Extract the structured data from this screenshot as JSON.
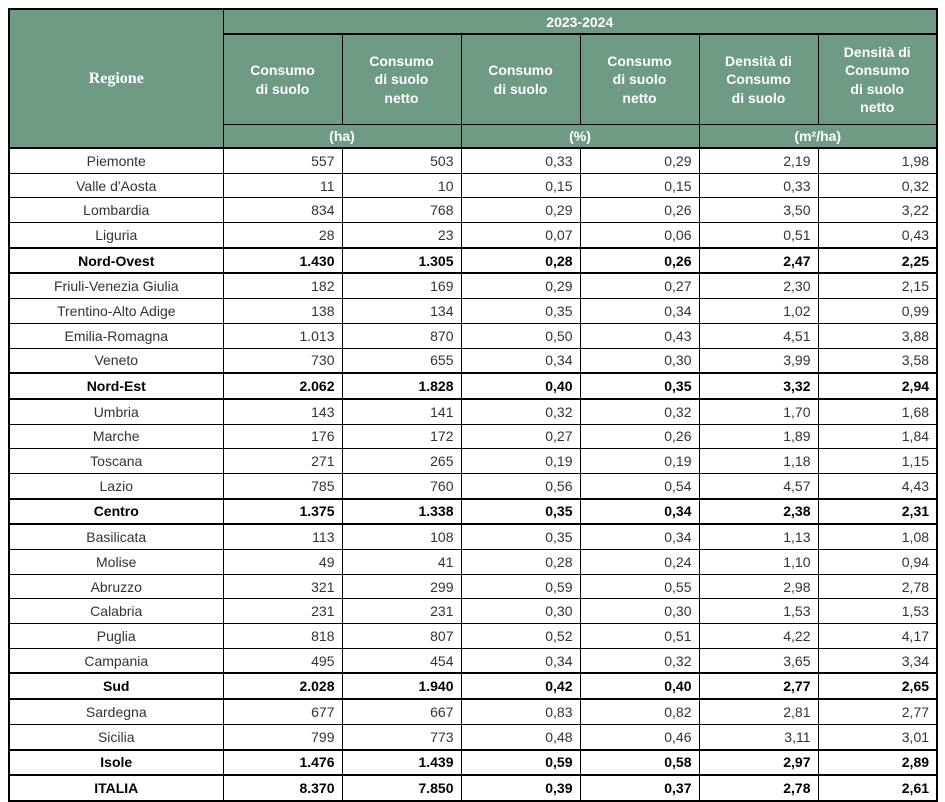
{
  "colors": {
    "header_bg": "#6F9A84",
    "header_text": "#FFFFFF",
    "border": "#000000",
    "body_text": "#333333"
  },
  "header": {
    "region_label": "Regione",
    "year_span": "2023-2024",
    "columns": [
      "Consumo\ndi suolo",
      "Consumo\ndi suolo\nnetto",
      "Consumo\ndi suolo",
      "Consumo\ndi suolo\nnetto",
      "Densità di\nConsumo\ndi suolo",
      "Densità di\nConsumo\ndi suolo\nnetto"
    ],
    "units": [
      "(ha)",
      "(%)",
      "(m²/ha)"
    ]
  },
  "chart_data": {
    "type": "table",
    "title": "2023-2024",
    "region_column": "Regione",
    "column_headers": [
      "Consumo di suolo (ha)",
      "Consumo di suolo netto (ha)",
      "Consumo di suolo (%)",
      "Consumo di suolo netto (%)",
      "Densità di Consumo di suolo (m²/ha)",
      "Densità di Consumo di suolo netto (m²/ha)"
    ],
    "unit_groups": [
      "(ha)",
      "(%)",
      "(m²/ha)"
    ],
    "rows": [
      {
        "region": "Piemonte",
        "values": [
          "557",
          "503",
          "0,33",
          "0,29",
          "2,19",
          "1,98"
        ],
        "bold": false
      },
      {
        "region": "Valle d'Aosta",
        "values": [
          "11",
          "10",
          "0,15",
          "0,15",
          "0,33",
          "0,32"
        ],
        "bold": false
      },
      {
        "region": "Lombardia",
        "values": [
          "834",
          "768",
          "0,29",
          "0,26",
          "3,50",
          "3,22"
        ],
        "bold": false
      },
      {
        "region": "Liguria",
        "values": [
          "28",
          "23",
          "0,07",
          "0,06",
          "0,51",
          "0,43"
        ],
        "bold": false
      },
      {
        "region": "Nord-Ovest",
        "values": [
          "1.430",
          "1.305",
          "0,28",
          "0,26",
          "2,47",
          "2,25"
        ],
        "bold": true
      },
      {
        "region": "Friuli-Venezia Giulia",
        "values": [
          "182",
          "169",
          "0,29",
          "0,27",
          "2,30",
          "2,15"
        ],
        "bold": false
      },
      {
        "region": "Trentino-Alto Adige",
        "values": [
          "138",
          "134",
          "0,35",
          "0,34",
          "1,02",
          "0,99"
        ],
        "bold": false
      },
      {
        "region": "Emilia-Romagna",
        "values": [
          "1.013",
          "870",
          "0,50",
          "0,43",
          "4,51",
          "3,88"
        ],
        "bold": false
      },
      {
        "region": "Veneto",
        "values": [
          "730",
          "655",
          "0,34",
          "0,30",
          "3,99",
          "3,58"
        ],
        "bold": false
      },
      {
        "region": "Nord-Est",
        "values": [
          "2.062",
          "1.828",
          "0,40",
          "0,35",
          "3,32",
          "2,94"
        ],
        "bold": true
      },
      {
        "region": "Umbria",
        "values": [
          "143",
          "141",
          "0,32",
          "0,32",
          "1,70",
          "1,68"
        ],
        "bold": false
      },
      {
        "region": "Marche",
        "values": [
          "176",
          "172",
          "0,27",
          "0,26",
          "1,89",
          "1,84"
        ],
        "bold": false
      },
      {
        "region": "Toscana",
        "values": [
          "271",
          "265",
          "0,19",
          "0,19",
          "1,18",
          "1,15"
        ],
        "bold": false
      },
      {
        "region": "Lazio",
        "values": [
          "785",
          "760",
          "0,56",
          "0,54",
          "4,57",
          "4,43"
        ],
        "bold": false
      },
      {
        "region": "Centro",
        "values": [
          "1.375",
          "1.338",
          "0,35",
          "0,34",
          "2,38",
          "2,31"
        ],
        "bold": true
      },
      {
        "region": "Basilicata",
        "values": [
          "113",
          "108",
          "0,35",
          "0,34",
          "1,13",
          "1,08"
        ],
        "bold": false
      },
      {
        "region": "Molise",
        "values": [
          "49",
          "41",
          "0,28",
          "0,24",
          "1,10",
          "0,94"
        ],
        "bold": false
      },
      {
        "region": "Abruzzo",
        "values": [
          "321",
          "299",
          "0,59",
          "0,55",
          "2,98",
          "2,78"
        ],
        "bold": false
      },
      {
        "region": "Calabria",
        "values": [
          "231",
          "231",
          "0,30",
          "0,30",
          "1,53",
          "1,53"
        ],
        "bold": false
      },
      {
        "region": "Puglia",
        "values": [
          "818",
          "807",
          "0,52",
          "0,51",
          "4,22",
          "4,17"
        ],
        "bold": false
      },
      {
        "region": "Campania",
        "values": [
          "495",
          "454",
          "0,34",
          "0,32",
          "3,65",
          "3,34"
        ],
        "bold": false
      },
      {
        "region": "Sud",
        "values": [
          "2.028",
          "1.940",
          "0,42",
          "0,40",
          "2,77",
          "2,65"
        ],
        "bold": true
      },
      {
        "region": "Sardegna",
        "values": [
          "677",
          "667",
          "0,83",
          "0,82",
          "2,81",
          "2,77"
        ],
        "bold": false
      },
      {
        "region": "Sicilia",
        "values": [
          "799",
          "773",
          "0,48",
          "0,46",
          "3,11",
          "3,01"
        ],
        "bold": false
      },
      {
        "region": "Isole",
        "values": [
          "1.476",
          "1.439",
          "0,59",
          "0,58",
          "2,97",
          "2,89"
        ],
        "bold": true
      },
      {
        "region": "ITALIA",
        "values": [
          "8.370",
          "7.850",
          "0,39",
          "0,37",
          "2,78",
          "2,61"
        ],
        "bold": true
      }
    ]
  }
}
